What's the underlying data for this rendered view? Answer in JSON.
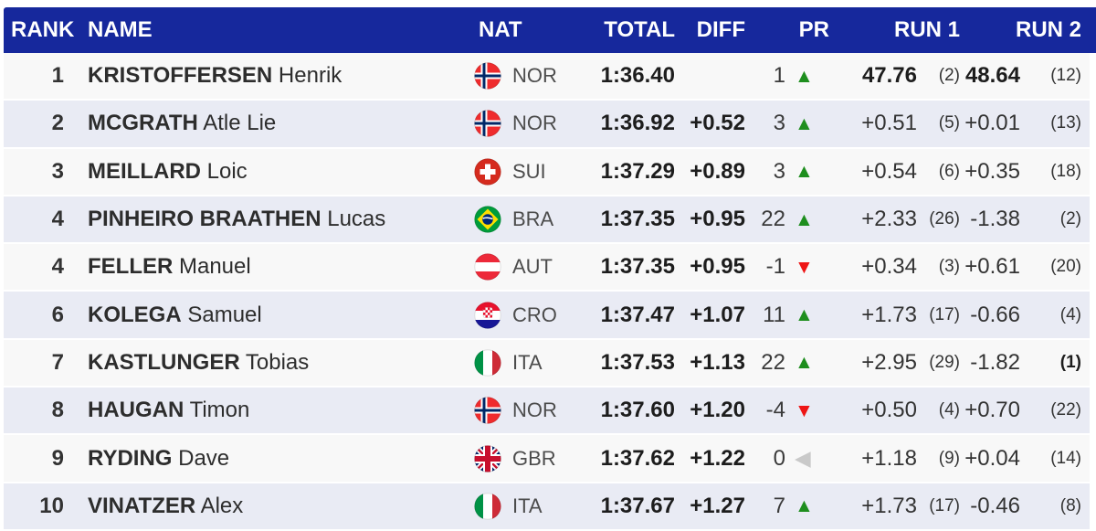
{
  "colors": {
    "header_bg": "#16289C",
    "row_odd": "#f8f8f8",
    "row_even": "#e9ebf4",
    "up_arrow": "#1e8e1e",
    "down_arrow": "#ee1515",
    "neutral_arrow": "#c9c9c9"
  },
  "table": {
    "columns": {
      "rank": "RANK",
      "name": "NAME",
      "nat": "NAT",
      "total": "TOTAL",
      "diff": "DIFF",
      "pr": "PR",
      "run1": "RUN 1",
      "run2": "RUN 2"
    },
    "rows": [
      {
        "rank": "1",
        "last": "KRISTOFFERSEN",
        "first": "Henrik",
        "nat": "NOR",
        "total": "1:36.40",
        "diff": "",
        "pr": "1",
        "pr_dir": "up",
        "run1": "47.76",
        "run1_rank": "(2)",
        "run2": "48.64",
        "run2_rank": "(12)",
        "run_bold": true,
        "run2_rank_bold": false
      },
      {
        "rank": "2",
        "last": "MCGRATH",
        "first": "Atle Lie",
        "nat": "NOR",
        "total": "1:36.92",
        "diff": "+0.52",
        "pr": "3",
        "pr_dir": "up",
        "run1": "+0.51",
        "run1_rank": "(5)",
        "run2": "+0.01",
        "run2_rank": "(13)",
        "run_bold": false,
        "run2_rank_bold": false
      },
      {
        "rank": "3",
        "last": "MEILLARD",
        "first": "Loic",
        "nat": "SUI",
        "total": "1:37.29",
        "diff": "+0.89",
        "pr": "3",
        "pr_dir": "up",
        "run1": "+0.54",
        "run1_rank": "(6)",
        "run2": "+0.35",
        "run2_rank": "(18)",
        "run_bold": false,
        "run2_rank_bold": false
      },
      {
        "rank": "4",
        "last": "PINHEIRO BRAATHEN",
        "first": "Lucas",
        "nat": "BRA",
        "total": "1:37.35",
        "diff": "+0.95",
        "pr": "22",
        "pr_dir": "up",
        "run1": "+2.33",
        "run1_rank": "(26)",
        "run2": "-1.38",
        "run2_rank": "(2)",
        "run_bold": false,
        "run2_rank_bold": false
      },
      {
        "rank": "4",
        "last": "FELLER",
        "first": "Manuel",
        "nat": "AUT",
        "total": "1:37.35",
        "diff": "+0.95",
        "pr": "-1",
        "pr_dir": "down",
        "run1": "+0.34",
        "run1_rank": "(3)",
        "run2": "+0.61",
        "run2_rank": "(20)",
        "run_bold": false,
        "run2_rank_bold": false
      },
      {
        "rank": "6",
        "last": "KOLEGA",
        "first": "Samuel",
        "nat": "CRO",
        "total": "1:37.47",
        "diff": "+1.07",
        "pr": "11",
        "pr_dir": "up",
        "run1": "+1.73",
        "run1_rank": "(17)",
        "run2": "-0.66",
        "run2_rank": "(4)",
        "run_bold": false,
        "run2_rank_bold": false
      },
      {
        "rank": "7",
        "last": "KASTLUNGER",
        "first": "Tobias",
        "nat": "ITA",
        "total": "1:37.53",
        "diff": "+1.13",
        "pr": "22",
        "pr_dir": "up",
        "run1": "+2.95",
        "run1_rank": "(29)",
        "run2": "-1.82",
        "run2_rank": "(1)",
        "run_bold": false,
        "run2_rank_bold": true
      },
      {
        "rank": "8",
        "last": "HAUGAN",
        "first": "Timon",
        "nat": "NOR",
        "total": "1:37.60",
        "diff": "+1.20",
        "pr": "-4",
        "pr_dir": "down",
        "run1": "+0.50",
        "run1_rank": "(4)",
        "run2": "+0.70",
        "run2_rank": "(22)",
        "run_bold": false,
        "run2_rank_bold": false
      },
      {
        "rank": "9",
        "last": "RYDING",
        "first": "Dave",
        "nat": "GBR",
        "total": "1:37.62",
        "diff": "+1.22",
        "pr": "0",
        "pr_dir": "neutral",
        "run1": "+1.18",
        "run1_rank": "(9)",
        "run2": "+0.04",
        "run2_rank": "(14)",
        "run_bold": false,
        "run2_rank_bold": false
      },
      {
        "rank": "10",
        "last": "VINATZER",
        "first": "Alex",
        "nat": "ITA",
        "total": "1:37.67",
        "diff": "+1.27",
        "pr": "7",
        "pr_dir": "up",
        "run1": "+1.73",
        "run1_rank": "(17)",
        "run2": "-0.46",
        "run2_rank": "(8)",
        "run_bold": false,
        "run2_rank_bold": false
      }
    ]
  }
}
